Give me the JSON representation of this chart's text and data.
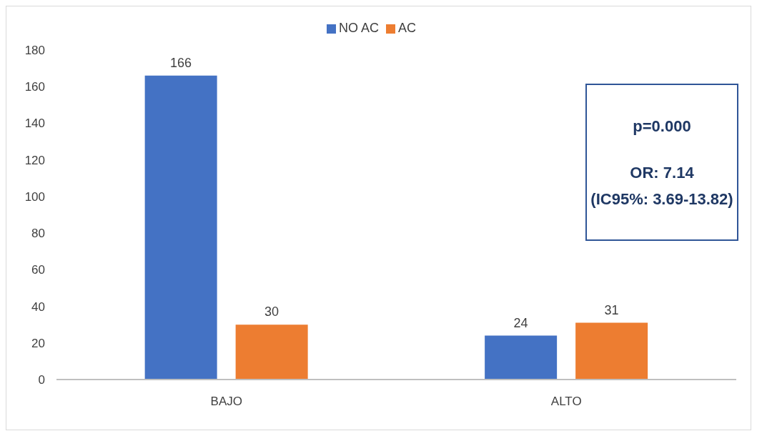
{
  "chart_data": {
    "type": "bar",
    "categories": [
      "BAJO",
      "ALTO"
    ],
    "series": [
      {
        "name": "NO AC",
        "color": "#4472c4",
        "values": [
          166,
          24
        ]
      },
      {
        "name": "AC",
        "color": "#ed7d31",
        "values": [
          30,
          31
        ]
      }
    ],
    "ylim": [
      0,
      180
    ],
    "yticks": [
      0,
      20,
      40,
      60,
      80,
      100,
      120,
      140,
      160,
      180
    ],
    "grid": false,
    "legend": "top",
    "data_labels": true,
    "annotations": [
      "p=0.000",
      "OR: 7.14\n(IC95%: 3.69-13.82)"
    ]
  }
}
